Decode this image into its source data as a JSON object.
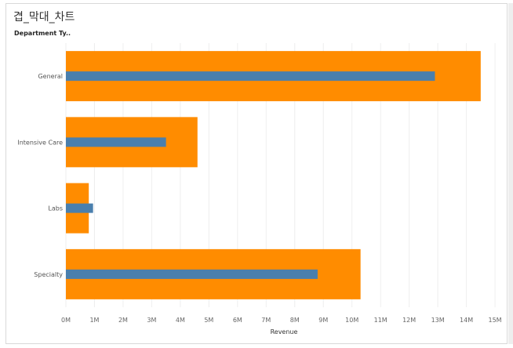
{
  "worksheet_title": "겹_막대_차트",
  "row_field_label": "Department Ty..",
  "chart_data": {
    "type": "bar",
    "orientation": "horizontal",
    "chart_style": "bar-in-bar",
    "categories": [
      "General",
      "Intensive Care",
      "Labs",
      "Specialty"
    ],
    "series": [
      {
        "color": "#ff8c00",
        "values": [
          14.5,
          4.6,
          0.8,
          10.3
        ]
      },
      {
        "color": "#4a7fad",
        "values": [
          12.9,
          3.5,
          0.95,
          8.8
        ]
      }
    ],
    "xlabel": "Revenue",
    "xlim": [
      0,
      15.3
    ],
    "xticks": [
      "0M",
      "1M",
      "2M",
      "3M",
      "4M",
      "5M",
      "6M",
      "7M",
      "8M",
      "9M",
      "10M",
      "11M",
      "12M",
      "13M",
      "14M",
      "15M"
    ],
    "grid": true
  }
}
